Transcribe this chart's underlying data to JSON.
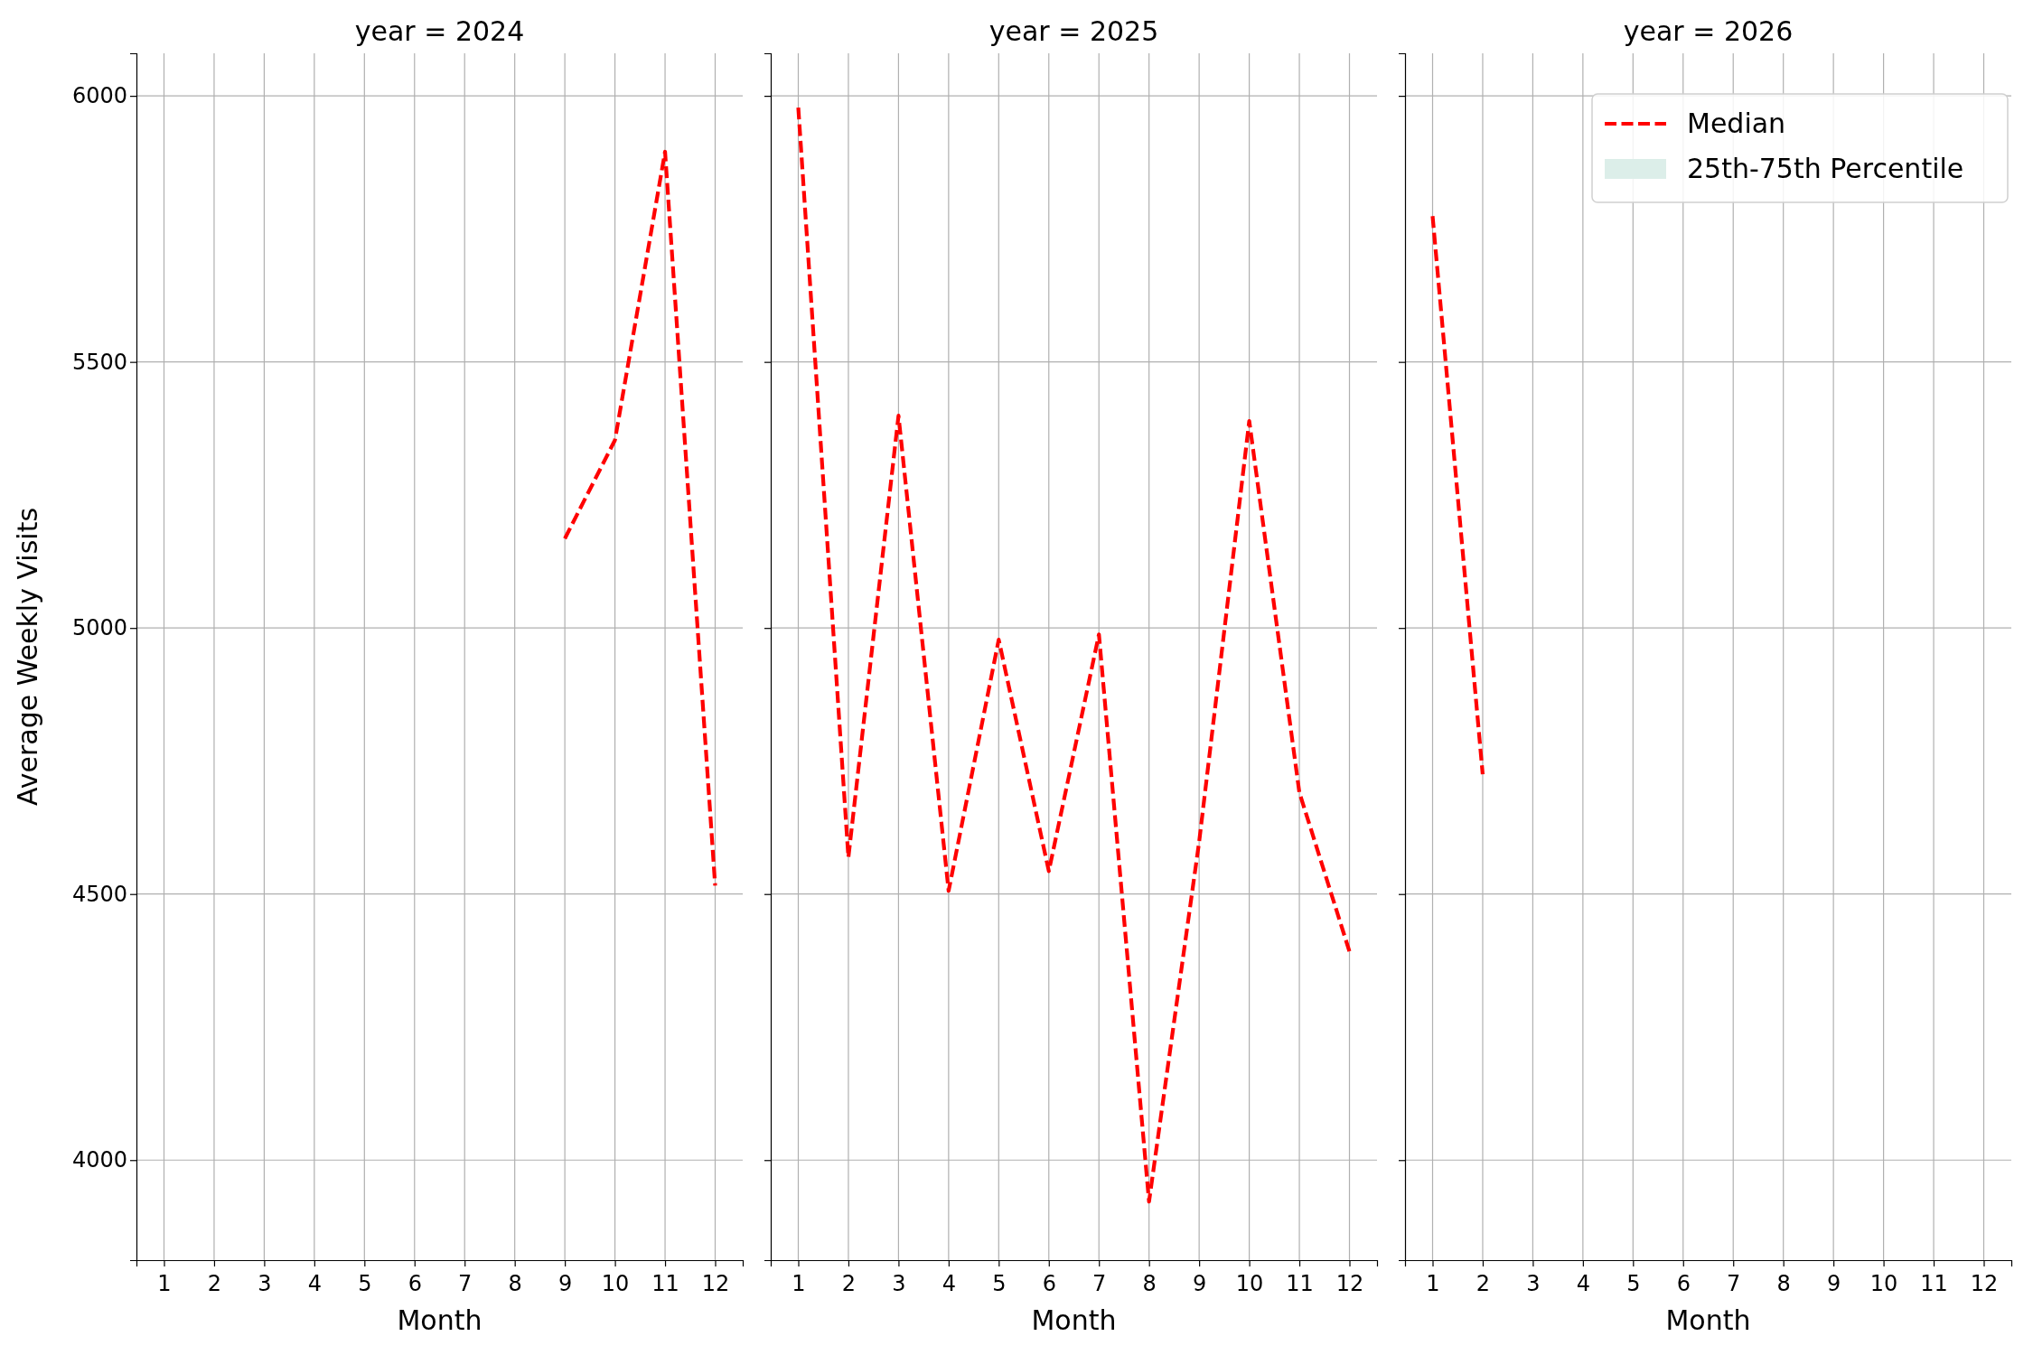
{
  "chart_data": [
    {
      "type": "line",
      "title": "year = 2024",
      "xlabel": "Month",
      "ylabel": "Average Weekly Visits",
      "xlim": [
        0.45,
        12.55
      ],
      "xticks": [
        1,
        2,
        3,
        4,
        5,
        6,
        7,
        8,
        9,
        10,
        11,
        12
      ],
      "ylim": [
        3812,
        6080
      ],
      "yticks": [
        4000,
        4500,
        5000,
        5500,
        6000
      ],
      "grid": true,
      "line_style": "dashed",
      "series": [
        {
          "color": "#ff0000",
          "x": [
            9,
            10,
            11,
            12
          ],
          "values": [
            5168,
            5353,
            5895,
            4516
          ]
        }
      ]
    },
    {
      "type": "line",
      "title": "year = 2025",
      "xlabel": "Month",
      "xlim": [
        0.45,
        12.55
      ],
      "xticks": [
        1,
        2,
        3,
        4,
        5,
        6,
        7,
        8,
        9,
        10,
        11,
        12
      ],
      "ylim": [
        3812,
        6080
      ],
      "yticks": [
        4000,
        4500,
        5000,
        5500,
        6000
      ],
      "grid": true,
      "line_style": "dashed",
      "tick_labels": "x",
      "series": [
        {
          "color": "#ff0000",
          "x": [
            1,
            2,
            3,
            4,
            5,
            6,
            7,
            8,
            9,
            10,
            11,
            12
          ],
          "values": [
            5978,
            4569,
            5399,
            4506,
            4978,
            4543,
            4988,
            3922,
            4598,
            5389,
            4691,
            4392
          ]
        }
      ]
    },
    {
      "type": "line",
      "title": "year = 2026",
      "xlabel": "Month",
      "xlim": [
        0.45,
        12.55
      ],
      "xticks": [
        1,
        2,
        3,
        4,
        5,
        6,
        7,
        8,
        9,
        10,
        11,
        12
      ],
      "ylim": [
        3812,
        6080
      ],
      "yticks": [
        4000,
        4500,
        5000,
        5500,
        6000
      ],
      "grid": true,
      "line_style": "dashed",
      "tick_labels": "x",
      "legend": "top right",
      "annotations": [
        "25th-75th Percentile"
      ],
      "series": [
        {
          "name": "Median",
          "color": "#ff0000",
          "x": [
            1,
            2
          ],
          "values": [
            5774,
            4725
          ]
        }
      ]
    }
  ]
}
